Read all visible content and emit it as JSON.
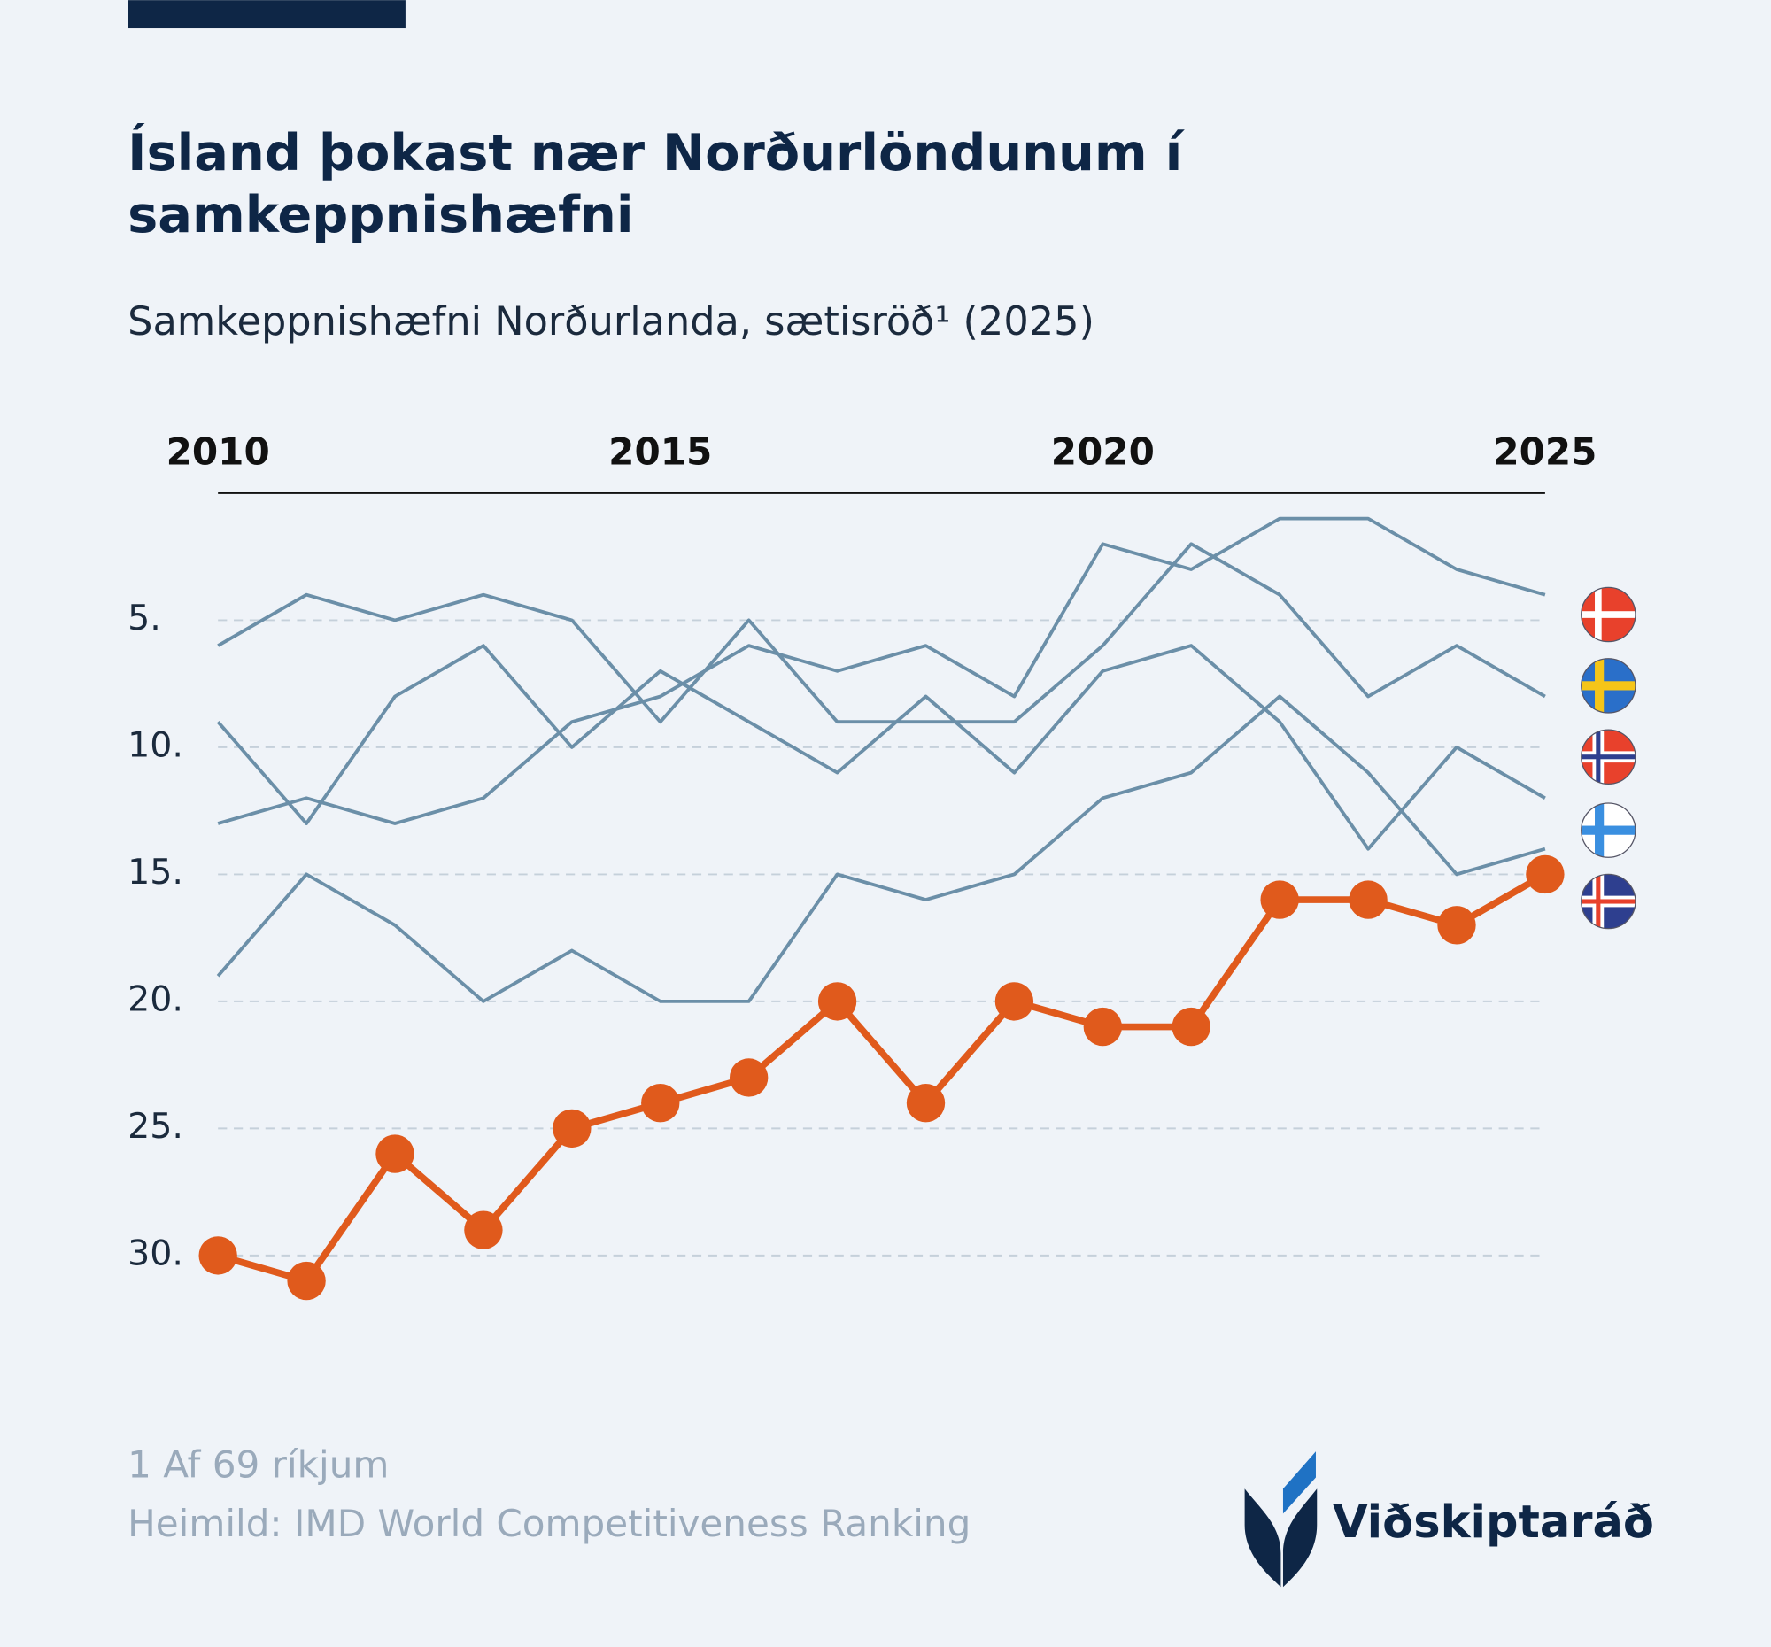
{
  "chart_data": {
    "type": "line",
    "title": [
      "Ísland þokast nær Norðurlöndunum í",
      "samkeppnishæfni"
    ],
    "subtitle": "Samkeppnishæfni Norðurlanda, sætisröð¹ (2025)",
    "footnote": "1 Af 69 ríkjum",
    "source": "Heimild: IMD World Competitiveness Ranking",
    "brand": "Viðskiptaráð",
    "x": [
      2010,
      2011,
      2012,
      2013,
      2014,
      2015,
      2016,
      2017,
      2018,
      2019,
      2020,
      2021,
      2022,
      2023,
      2024,
      2025
    ],
    "xlim": [
      2010,
      2025
    ],
    "xticks": [
      2010,
      2015,
      2020,
      2025
    ],
    "ylim": [
      0,
      32
    ],
    "y_inverted": true,
    "yticks": [
      {
        "value": 5,
        "label": "5."
      },
      {
        "value": 10,
        "label": "10."
      },
      {
        "value": 15,
        "label": "15."
      },
      {
        "value": 20,
        "label": "20."
      },
      {
        "value": 25,
        "label": "25."
      },
      {
        "value": 30,
        "label": "30."
      }
    ],
    "grid": true,
    "series": [
      {
        "color": "#6b8fa8",
        "values": [
          13,
          12,
          13,
          12,
          9,
          8,
          6,
          7,
          6,
          8,
          2,
          3,
          1,
          1,
          3,
          4
        ]
      },
      {
        "color": "#6b8fa8",
        "values": [
          6,
          4,
          5,
          4,
          5,
          9,
          5,
          9,
          9,
          9,
          6,
          2,
          4,
          8,
          6,
          8
        ]
      },
      {
        "color": "#6b8fa8",
        "values": [
          9,
          13,
          8,
          6,
          10,
          7,
          9,
          11,
          8,
          11,
          7,
          6,
          9,
          14,
          10,
          12
        ]
      },
      {
        "color": "#6b8fa8",
        "values": [
          19,
          15,
          17,
          20,
          18,
          20,
          20,
          15,
          16,
          15,
          12,
          11,
          8,
          11,
          15,
          14
        ]
      },
      {
        "color": "#e05a1c",
        "markers": true,
        "values": [
          30,
          31,
          26,
          29,
          25,
          24,
          23,
          20,
          24,
          20,
          21,
          21,
          16,
          16,
          17,
          15
        ]
      }
    ]
  }
}
